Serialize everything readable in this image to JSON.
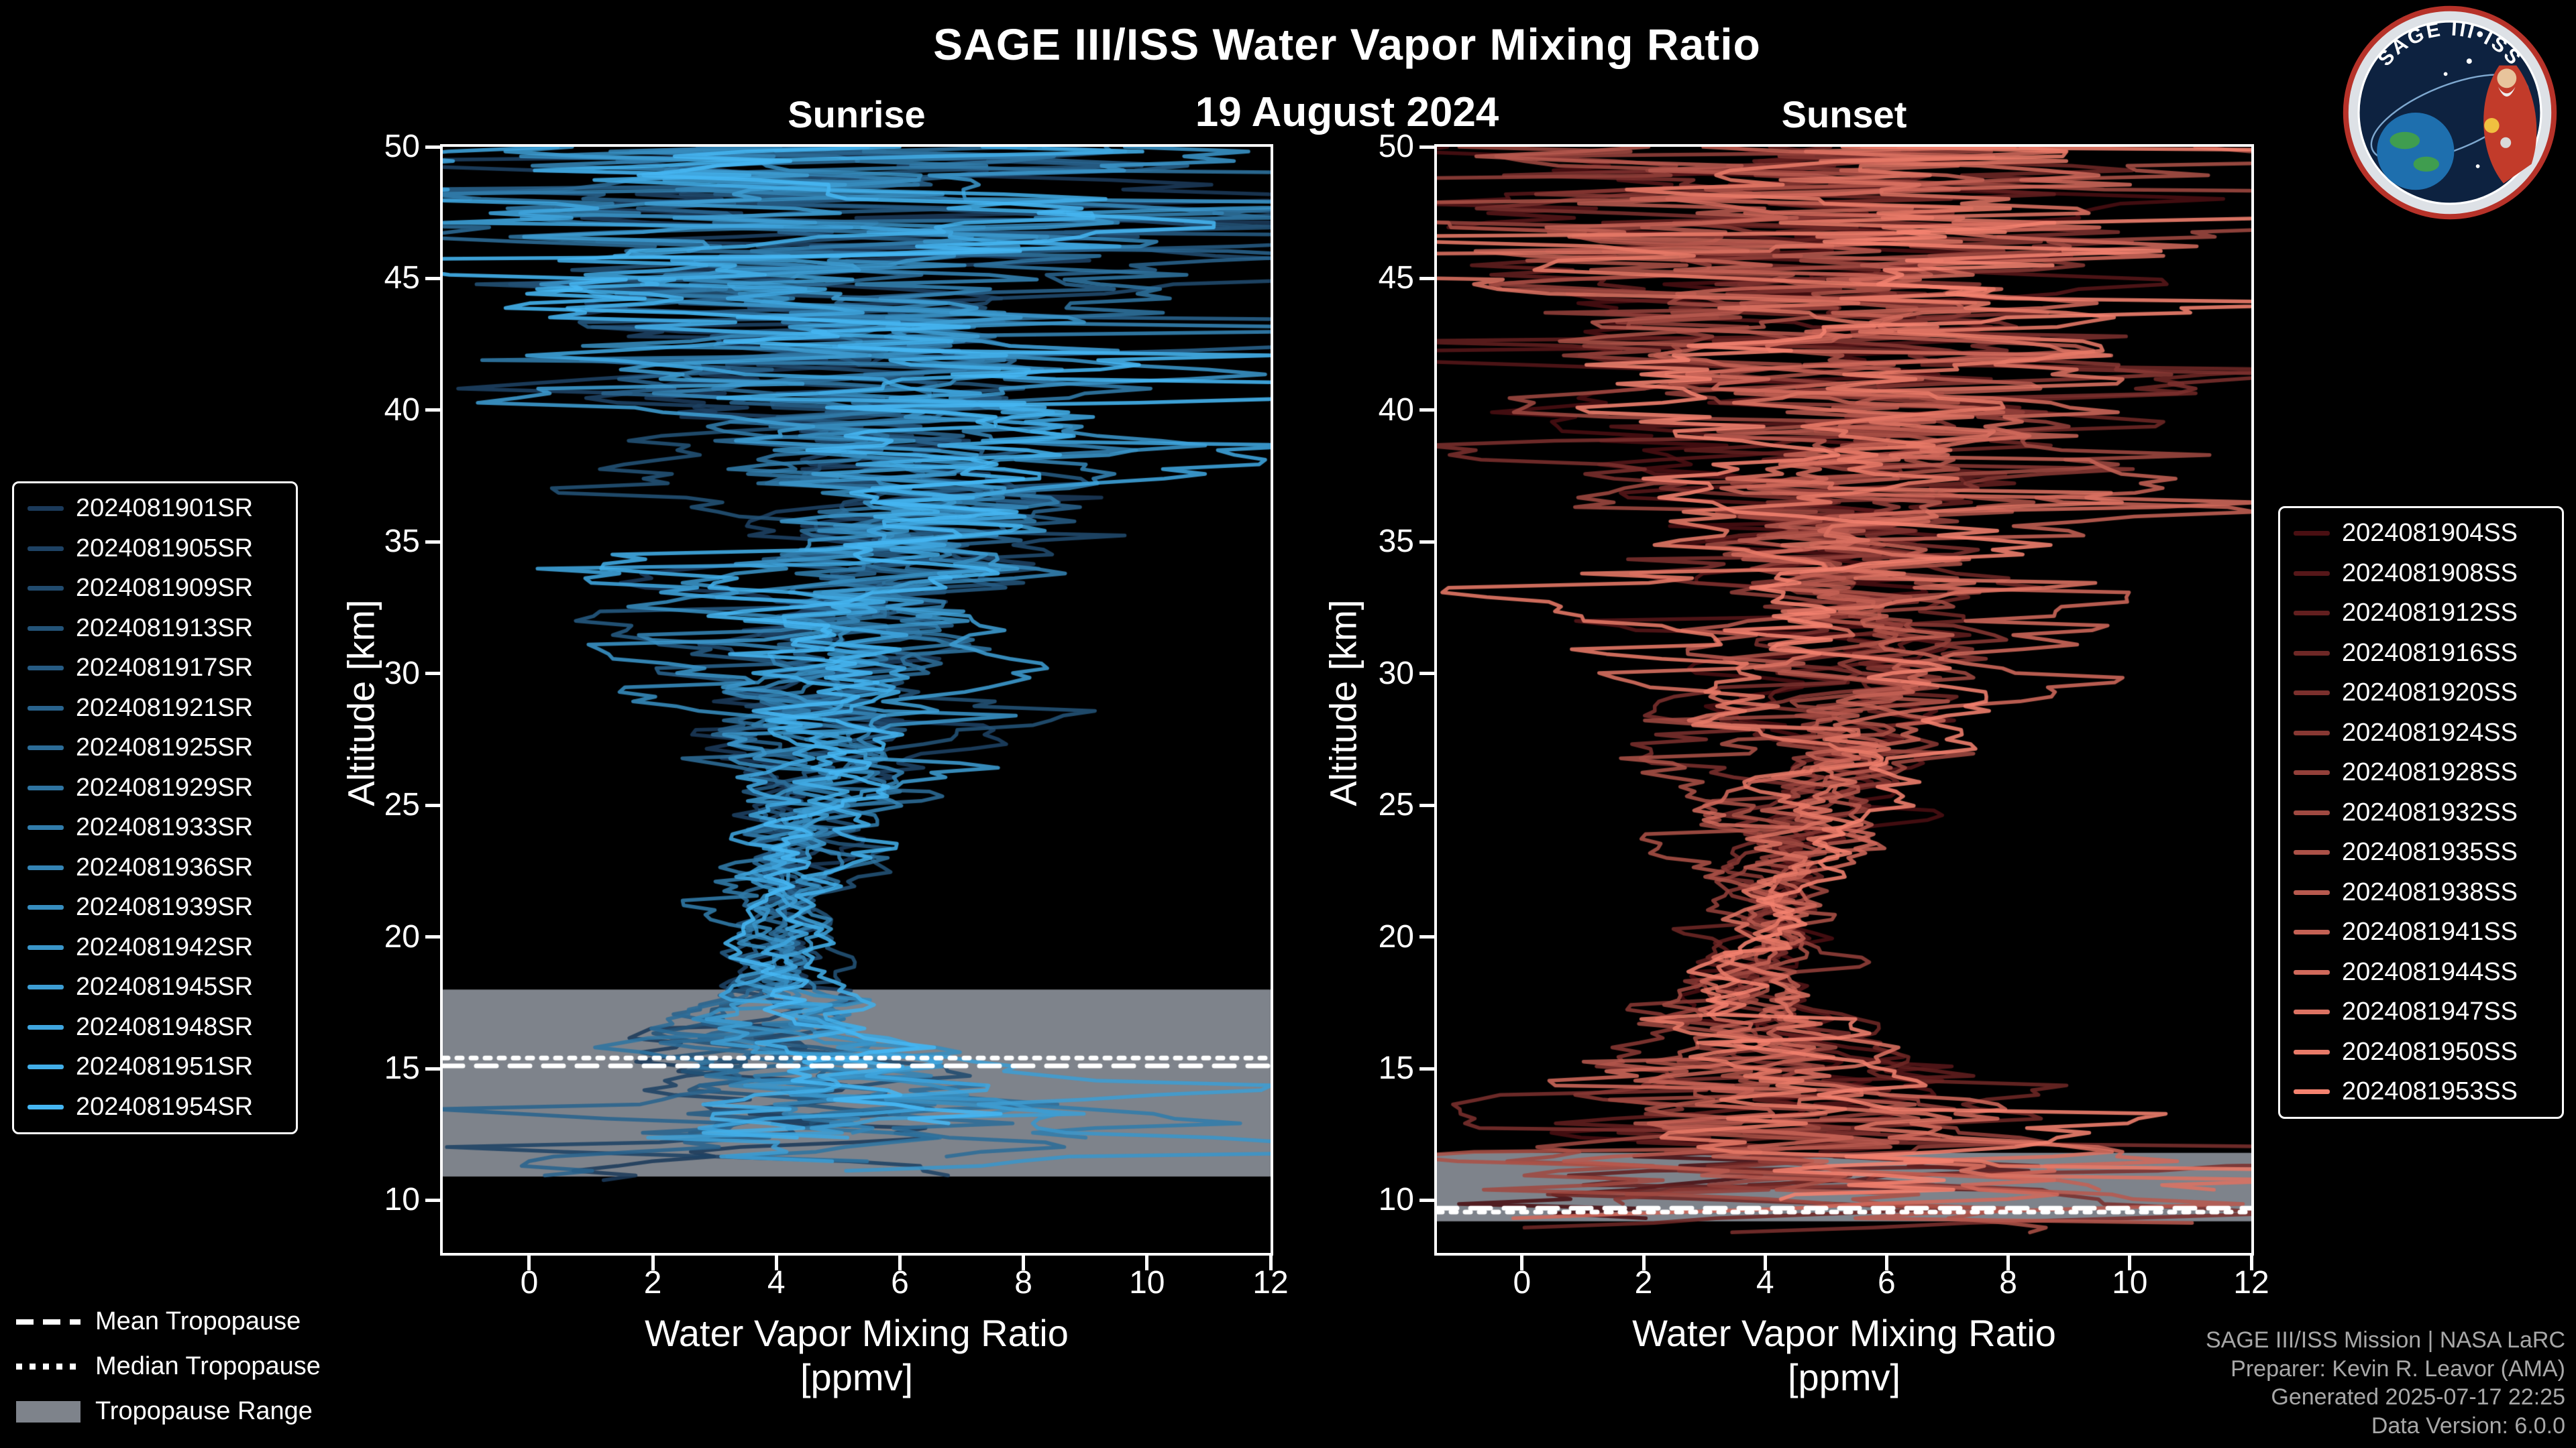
{
  "title": "SAGE III/ISS Water Vapor Mixing Ratio",
  "date": "19 August 2024",
  "panels": {
    "left": {
      "label": "Sunrise"
    },
    "right": {
      "label": "Sunset"
    }
  },
  "axes": {
    "y_label": "Altitude [km]",
    "x_label": "Water Vapor Mixing Ratio",
    "x_label_units": "[ppmv]",
    "x_ticks": [
      0,
      2,
      4,
      6,
      8,
      10,
      12
    ],
    "y_ticks": [
      10,
      15,
      20,
      25,
      30,
      35,
      40,
      45,
      50
    ]
  },
  "tropopause_legend": [
    {
      "style": "dashed",
      "label": "Mean Tropopause"
    },
    {
      "style": "dotted",
      "label": "Median Tropopause"
    },
    {
      "style": "box",
      "label": "Tropopause Range"
    }
  ],
  "credits": [
    "SAGE III/ISS Mission | NASA LaRC",
    "Preparer: Kevin R. Leavor (AMA)",
    "Generated 2025-07-17 22:25",
    "Data Version: 6.0.0"
  ],
  "logo": {
    "title": "SAGE III•ISS"
  },
  "chart_data": {
    "type": "line",
    "x_range": [
      -1.4,
      12
    ],
    "y_range": [
      8,
      50
    ],
    "xlabel": "Water Vapor Mixing Ratio [ppmv]",
    "ylabel": "Altitude [km]",
    "grid": false,
    "background": "#000000",
    "foreground": "#ffffff",
    "band_color": "#7e838b",
    "panels": [
      {
        "name": "Sunrise",
        "series": [
          {
            "name": "2024081901SR",
            "color": "#1b3a5a"
          },
          {
            "name": "2024081905SR",
            "color": "#1e4264"
          },
          {
            "name": "2024081909SR",
            "color": "#214b6e"
          },
          {
            "name": "2024081913SR",
            "color": "#235378"
          },
          {
            "name": "2024081917SR",
            "color": "#265b83"
          },
          {
            "name": "2024081921SR",
            "color": "#29638d"
          },
          {
            "name": "2024081925SR",
            "color": "#2c6c97"
          },
          {
            "name": "2024081929SR",
            "color": "#2f74a1"
          },
          {
            "name": "2024081933SR",
            "color": "#317cab"
          },
          {
            "name": "2024081936SR",
            "color": "#3484b5"
          },
          {
            "name": "2024081939SR",
            "color": "#378dbf"
          },
          {
            "name": "2024081942SR",
            "color": "#3a95c9"
          },
          {
            "name": "2024081945SR",
            "color": "#3d9dd3"
          },
          {
            "name": "2024081948SR",
            "color": "#3fa5de"
          },
          {
            "name": "2024081951SR",
            "color": "#42aee8"
          },
          {
            "name": "2024081954SR",
            "color": "#45b6f2"
          }
        ],
        "tropopause": {
          "mean_km": 15.1,
          "median_km": 15.4,
          "range_km": [
            10.9,
            18.0
          ]
        },
        "profile_bottom_km": [
          10.7,
          13.3
        ],
        "envelope": {
          "altitudes_km": [
            8,
            9,
            10,
            11,
            12,
            13,
            14,
            15,
            16,
            17,
            18,
            19,
            20,
            21,
            22,
            23,
            24,
            25,
            26,
            27,
            28,
            29,
            30,
            31,
            32,
            33,
            34,
            35,
            36,
            37,
            38,
            39,
            40,
            41,
            42,
            43,
            44,
            45,
            46,
            47,
            48,
            49,
            50
          ],
          "center_ppmv": [
            6.0,
            5.9,
            5.8,
            5.6,
            5.3,
            5.0,
            4.8,
            4.6,
            4.4,
            4.2,
            4.1,
            4.1,
            4.2,
            4.2,
            4.3,
            4.4,
            4.5,
            4.6,
            4.7,
            4.8,
            4.9,
            5.0,
            5.0,
            5.1,
            5.1,
            5.2,
            5.2,
            5.3,
            5.3,
            5.4,
            5.4,
            5.4,
            5.4,
            5.4,
            5.4,
            5.4,
            5.4,
            5.4,
            5.4,
            5.4,
            5.4,
            5.4,
            5.4
          ],
          "spread_ppmv": [
            4.6,
            4.6,
            4.4,
            4.2,
            3.8,
            3.2,
            2.6,
            2.1,
            1.6,
            1.2,
            0.9,
            0.75,
            0.7,
            0.7,
            0.8,
            0.9,
            1.0,
            1.1,
            1.25,
            1.4,
            1.55,
            1.7,
            1.85,
            2.0,
            2.15,
            2.3,
            2.45,
            2.6,
            2.8,
            3.0,
            3.2,
            3.4,
            3.65,
            3.9,
            4.2,
            4.5,
            4.85,
            5.2,
            5.5,
            5.8,
            6.0,
            6.2,
            6.4
          ]
        }
      },
      {
        "name": "Sunset",
        "series": [
          {
            "name": "2024081904SS",
            "color": "#4a0f12"
          },
          {
            "name": "2024081908SS",
            "color": "#561719"
          },
          {
            "name": "2024081912SS",
            "color": "#621f1f"
          },
          {
            "name": "2024081916SS",
            "color": "#6e2826"
          },
          {
            "name": "2024081920SS",
            "color": "#7b302d"
          },
          {
            "name": "2024081924SS",
            "color": "#873833"
          },
          {
            "name": "2024081928SS",
            "color": "#93403a"
          },
          {
            "name": "2024081932SS",
            "color": "#9f4941"
          },
          {
            "name": "2024081935SS",
            "color": "#ab5147"
          },
          {
            "name": "2024081938SS",
            "color": "#b7594e"
          },
          {
            "name": "2024081941SS",
            "color": "#c46154"
          },
          {
            "name": "2024081944SS",
            "color": "#d0695b"
          },
          {
            "name": "2024081947SS",
            "color": "#dc7262"
          },
          {
            "name": "2024081950SS",
            "color": "#e87a68"
          },
          {
            "name": "2024081953SS",
            "color": "#f4826f"
          }
        ],
        "tropopause": {
          "mean_km": 9.7,
          "median_km": 9.55,
          "range_km": [
            9.2,
            11.8
          ]
        },
        "profile_bottom_km": [
          8.4,
          10.8
        ],
        "envelope": {
          "altitudes_km": [
            8,
            9,
            10,
            11,
            12,
            13,
            14,
            15,
            16,
            17,
            18,
            19,
            20,
            21,
            22,
            23,
            24,
            25,
            26,
            27,
            28,
            29,
            30,
            31,
            32,
            33,
            34,
            35,
            36,
            37,
            38,
            39,
            40,
            41,
            42,
            43,
            44,
            45,
            46,
            47,
            48,
            49,
            50
          ],
          "center_ppmv": [
            5.2,
            5.2,
            5.1,
            5.0,
            4.9,
            4.7,
            4.5,
            4.3,
            4.2,
            4.1,
            4.0,
            4.0,
            4.1,
            4.2,
            4.3,
            4.4,
            4.5,
            4.6,
            4.7,
            4.8,
            4.9,
            5.0,
            5.1,
            5.2,
            5.2,
            5.3,
            5.3,
            5.4,
            5.4,
            5.5,
            5.5,
            5.5,
            5.5,
            5.5,
            5.5,
            5.5,
            5.5,
            5.5,
            5.5,
            5.5,
            5.5,
            5.5,
            5.5
          ],
          "spread_ppmv": [
            5.2,
            5.2,
            5.0,
            4.6,
            4.0,
            3.2,
            2.5,
            2.0,
            1.5,
            1.2,
            0.9,
            0.8,
            0.75,
            0.75,
            0.85,
            0.95,
            1.05,
            1.15,
            1.3,
            1.45,
            1.6,
            1.75,
            1.9,
            2.05,
            2.2,
            2.35,
            2.5,
            2.7,
            2.9,
            3.1,
            3.3,
            3.5,
            3.7,
            3.95,
            4.25,
            4.55,
            4.9,
            5.25,
            5.55,
            5.85,
            6.05,
            6.25,
            6.45
          ]
        }
      }
    ]
  }
}
